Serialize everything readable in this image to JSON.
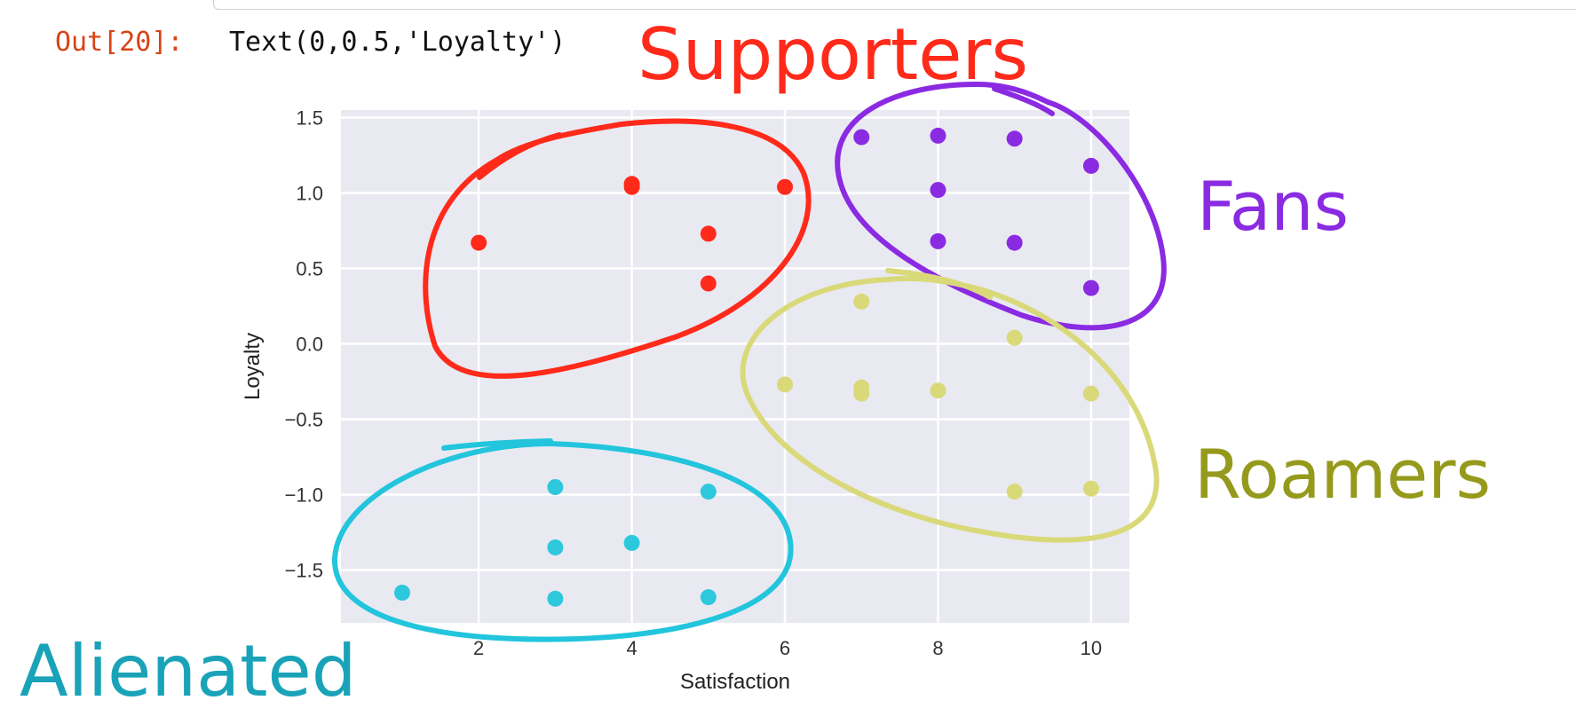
{
  "cell": {
    "out_prompt": "Out[20]:",
    "out_text": "Text(0,0.5,'Loyalty')"
  },
  "annotations": [
    {
      "text": "Supporters",
      "color": "#ff2a1a"
    },
    {
      "text": "Fans",
      "color": "#8a2be2"
    },
    {
      "text": "Roamers",
      "color": "#959a1c"
    },
    {
      "text": "Alienated",
      "color": "#1aa3b8"
    }
  ],
  "chart_data": {
    "type": "scatter",
    "xlabel": "Satisfaction",
    "ylabel": "Loyalty",
    "xlim": [
      0.2,
      10.5
    ],
    "ylim": [
      -1.85,
      1.55
    ],
    "xticks": [
      2,
      4,
      6,
      8,
      10
    ],
    "xtick_labels": [
      "2",
      "4",
      "6",
      "8",
      "10"
    ],
    "yticks": [
      1.5,
      1.0,
      0.5,
      0.0,
      -0.5,
      -1.0,
      -1.5
    ],
    "ytick_labels": [
      "1.5",
      "1.0",
      "0.5",
      "0.0",
      "−0.5",
      "−1.0",
      "−1.5"
    ],
    "grid": true,
    "background": "#e9e9f2",
    "series": [
      {
        "color": "#ff2a1a",
        "points": [
          [
            2,
            0.67
          ],
          [
            4,
            1.04
          ],
          [
            4,
            1.06
          ],
          [
            5,
            0.73
          ],
          [
            5,
            0.4
          ],
          [
            6,
            1.04
          ]
        ]
      },
      {
        "color": "#8a2be2",
        "points": [
          [
            7,
            1.37
          ],
          [
            8,
            1.38
          ],
          [
            8,
            1.02
          ],
          [
            8,
            0.68
          ],
          [
            9,
            1.36
          ],
          [
            9,
            0.67
          ],
          [
            10,
            1.18
          ],
          [
            10,
            0.37
          ]
        ]
      },
      {
        "color": "#d9d97a",
        "points": [
          [
            6,
            -0.27
          ],
          [
            7,
            0.28
          ],
          [
            7,
            -0.29
          ],
          [
            7,
            -0.33
          ],
          [
            8,
            -0.31
          ],
          [
            9,
            0.04
          ],
          [
            9,
            -0.98
          ],
          [
            10,
            -0.33
          ],
          [
            10,
            -0.96
          ]
        ]
      },
      {
        "color": "#2ec8dc",
        "points": [
          [
            1,
            -1.65
          ],
          [
            3,
            -0.95
          ],
          [
            3,
            -1.35
          ],
          [
            3,
            -1.69
          ],
          [
            4,
            -1.32
          ],
          [
            5,
            -0.98
          ],
          [
            5,
            -1.68
          ]
        ]
      }
    ]
  }
}
